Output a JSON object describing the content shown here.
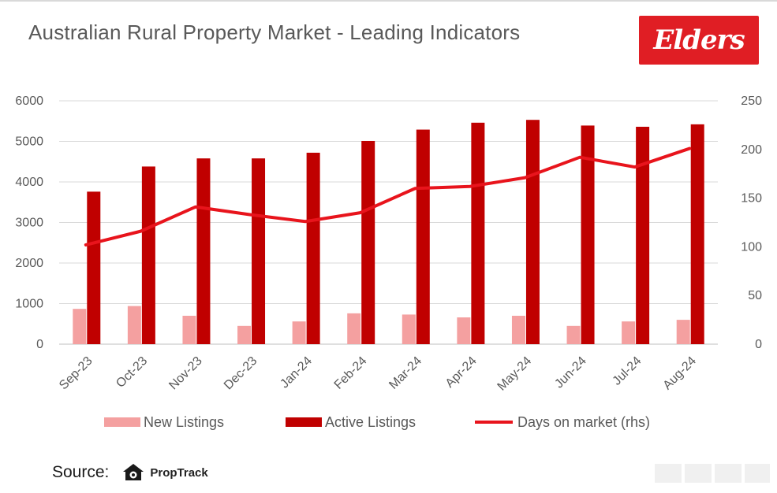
{
  "header": {
    "title": "Australian Rural Property Market - Leading Indicators",
    "logo_text": "Elders",
    "logo_color": "#e01e24"
  },
  "chart_data": {
    "type": "bar",
    "title": "Australian Rural Property Market - Leading Indicators",
    "categories": [
      "Sep-23",
      "Oct-23",
      "Nov-23",
      "Dec-23",
      "Jan-24",
      "Feb-24",
      "Mar-24",
      "Apr-24",
      "May-24",
      "Jun-24",
      "Jul-24",
      "Aug-24"
    ],
    "series": [
      {
        "name": "New Listings",
        "kind": "bar",
        "axis": "left",
        "color": "#f4a0a0",
        "values": [
          870,
          940,
          700,
          450,
          560,
          760,
          730,
          660,
          700,
          450,
          560,
          600
        ]
      },
      {
        "name": "Active Listings",
        "kind": "bar",
        "axis": "left",
        "color": "#c00000",
        "values": [
          3760,
          4380,
          4580,
          4580,
          4720,
          5010,
          5290,
          5460,
          5530,
          5390,
          5360,
          5420
        ]
      },
      {
        "name": "Days on market  (rhs)",
        "kind": "line",
        "axis": "right",
        "color": "#e8141c",
        "values": [
          102,
          116,
          141,
          133,
          126,
          135,
          160,
          162,
          171,
          192,
          182,
          201
        ]
      }
    ],
    "y_left": {
      "min": 0,
      "max": 6000,
      "ticks": [
        0,
        1000,
        2000,
        3000,
        4000,
        5000,
        6000
      ]
    },
    "y_right": {
      "min": 0,
      "max": 250,
      "ticks": [
        0,
        50,
        100,
        150,
        200,
        250
      ]
    },
    "grid": true,
    "legend_position": "bottom"
  },
  "footer": {
    "source_label": "Source:",
    "source_brand": "PropTrack"
  }
}
